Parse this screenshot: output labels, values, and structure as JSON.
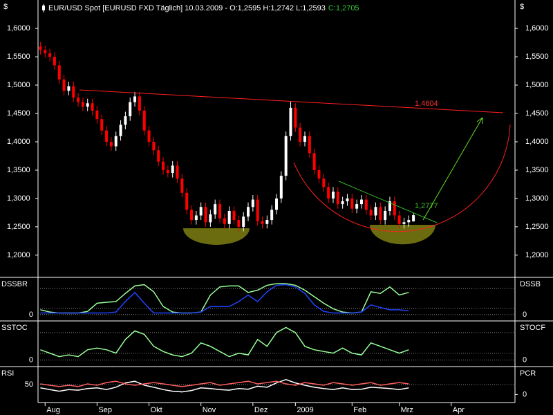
{
  "chart_data": [
    {
      "type": "candlestick",
      "title": "EUR/USD Spot [EURUSD FXD  Täglich] 10.03.2009 - O:1,2595 H:1,2742 L:1,2593",
      "close_label": "C:1,2705",
      "y_unit": "$",
      "up_color": "#ffffff",
      "down_color": "#ff0000",
      "xlim": [
        -0.5,
        100.5
      ],
      "xticks": [
        {
          "value": 1,
          "label": "Aug"
        },
        {
          "value": 12,
          "label": "Sep"
        },
        {
          "value": 23,
          "label": "Okt"
        },
        {
          "value": 34,
          "label": "Nov"
        },
        {
          "value": 45,
          "label": "Dez"
        },
        {
          "value": 54,
          "label": "2009"
        },
        {
          "value": 66,
          "label": "Feb"
        },
        {
          "value": 76,
          "label": "Mrz"
        },
        {
          "value": 87,
          "label": "Apr"
        }
      ],
      "ylim": [
        1.162,
        1.616
      ],
      "yticks": [
        {
          "value": 1.2,
          "label": "1,2000"
        },
        {
          "value": 1.25,
          "label": "1,2500"
        },
        {
          "value": 1.3,
          "label": "1,3000"
        },
        {
          "value": 1.35,
          "label": "1,3500"
        },
        {
          "value": 1.4,
          "label": "1,4000"
        },
        {
          "value": 1.45,
          "label": "1,4500"
        },
        {
          "value": 1.5,
          "label": "1,5000"
        },
        {
          "value": 1.55,
          "label": "1,5500"
        },
        {
          "value": 1.6,
          "label": "1,6000"
        }
      ],
      "annotations": [
        {
          "text": "1,4604",
          "color": "#ff3030"
        },
        {
          "text": "1,2777",
          "color": "#44bb33"
        }
      ],
      "open": [
        1.568,
        1.562,
        1.556,
        1.55,
        1.535,
        1.51,
        1.49,
        1.498,
        1.478,
        1.47,
        1.462,
        1.468,
        1.455,
        1.44,
        1.42,
        1.4,
        1.392,
        1.41,
        1.43,
        1.445,
        1.47,
        1.48,
        1.455,
        1.42,
        1.4,
        1.385,
        1.365,
        1.35,
        1.345,
        1.358,
        1.335,
        1.31,
        1.28,
        1.262,
        1.27,
        1.285,
        1.258,
        1.272,
        1.29,
        1.265,
        1.255,
        1.278,
        1.262,
        1.25,
        1.268,
        1.285,
        1.298,
        1.26,
        1.255,
        1.262,
        1.28,
        1.3,
        1.34,
        1.41,
        1.46,
        1.425,
        1.4,
        1.41,
        1.38,
        1.35,
        1.335,
        1.32,
        1.3,
        1.312,
        1.29,
        1.295,
        1.3,
        1.282,
        1.29,
        1.298,
        1.28,
        1.27,
        1.285,
        1.262,
        1.278,
        1.295,
        1.27,
        1.255,
        1.258,
        1.2595
      ],
      "high": [
        1.576,
        1.57,
        1.564,
        1.558,
        1.543,
        1.518,
        1.506,
        1.506,
        1.486,
        1.478,
        1.476,
        1.476,
        1.463,
        1.448,
        1.428,
        1.408,
        1.418,
        1.438,
        1.453,
        1.478,
        1.488,
        1.488,
        1.463,
        1.428,
        1.408,
        1.393,
        1.373,
        1.358,
        1.366,
        1.366,
        1.343,
        1.318,
        1.288,
        1.278,
        1.293,
        1.293,
        1.28,
        1.298,
        1.298,
        1.273,
        1.286,
        1.286,
        1.27,
        1.276,
        1.293,
        1.306,
        1.306,
        1.268,
        1.27,
        1.288,
        1.308,
        1.348,
        1.418,
        1.472,
        1.468,
        1.433,
        1.418,
        1.418,
        1.388,
        1.358,
        1.343,
        1.328,
        1.32,
        1.32,
        1.303,
        1.308,
        1.308,
        1.298,
        1.306,
        1.306,
        1.288,
        1.293,
        1.293,
        1.286,
        1.303,
        1.303,
        1.278,
        1.266,
        1.27,
        1.2742
      ],
      "low": [
        1.554,
        1.548,
        1.542,
        1.527,
        1.502,
        1.482,
        1.482,
        1.47,
        1.462,
        1.454,
        1.454,
        1.447,
        1.432,
        1.412,
        1.392,
        1.384,
        1.384,
        1.402,
        1.422,
        1.437,
        1.462,
        1.447,
        1.412,
        1.392,
        1.377,
        1.357,
        1.342,
        1.337,
        1.337,
        1.327,
        1.302,
        1.272,
        1.254,
        1.254,
        1.262,
        1.25,
        1.25,
        1.264,
        1.257,
        1.247,
        1.247,
        1.254,
        1.242,
        1.242,
        1.26,
        1.277,
        1.252,
        1.247,
        1.247,
        1.254,
        1.272,
        1.292,
        1.332,
        1.402,
        1.417,
        1.392,
        1.392,
        1.372,
        1.342,
        1.327,
        1.312,
        1.292,
        1.292,
        1.282,
        1.282,
        1.287,
        1.274,
        1.274,
        1.282,
        1.272,
        1.262,
        1.262,
        1.254,
        1.254,
        1.27,
        1.262,
        1.247,
        1.247,
        1.25,
        1.2593
      ],
      "close": [
        1.562,
        1.556,
        1.55,
        1.535,
        1.51,
        1.49,
        1.498,
        1.478,
        1.47,
        1.462,
        1.468,
        1.455,
        1.44,
        1.42,
        1.4,
        1.392,
        1.41,
        1.43,
        1.445,
        1.47,
        1.48,
        1.455,
        1.42,
        1.4,
        1.385,
        1.365,
        1.35,
        1.345,
        1.358,
        1.335,
        1.31,
        1.28,
        1.262,
        1.27,
        1.285,
        1.258,
        1.272,
        1.29,
        1.265,
        1.255,
        1.278,
        1.262,
        1.25,
        1.268,
        1.285,
        1.298,
        1.26,
        1.255,
        1.262,
        1.28,
        1.3,
        1.34,
        1.41,
        1.46,
        1.425,
        1.4,
        1.41,
        1.38,
        1.35,
        1.335,
        1.32,
        1.3,
        1.312,
        1.29,
        1.295,
        1.3,
        1.282,
        1.29,
        1.298,
        1.28,
        1.27,
        1.285,
        1.262,
        1.278,
        1.295,
        1.27,
        1.255,
        1.258,
        1.262,
        1.2705
      ]
    },
    {
      "type": "line",
      "left_label": "DSSBR",
      "right_label": "DSSB",
      "x": [
        0,
        2,
        4,
        6,
        8,
        10,
        12,
        14,
        16,
        18,
        20,
        22,
        24,
        26,
        28,
        30,
        32,
        34,
        36,
        38,
        40,
        42,
        44,
        46,
        48,
        50,
        52,
        54,
        56,
        58,
        60,
        62,
        64,
        66,
        68,
        70,
        72,
        74,
        76,
        78
      ],
      "ylim": [
        -15,
        110
      ],
      "yticks": [
        0
      ],
      "guides": [
        20,
        80
      ],
      "series": [
        {
          "color": "#99ff99",
          "values": [
            15,
            8,
            5,
            5,
            5,
            10,
            35,
            38,
            40,
            65,
            88,
            92,
            70,
            25,
            8,
            5,
            5,
            8,
            60,
            85,
            88,
            88,
            68,
            75,
            90,
            95,
            95,
            90,
            75,
            55,
            35,
            18,
            8,
            5,
            8,
            70,
            65,
            85,
            60,
            68
          ]
        },
        {
          "color": "#2244ff",
          "values": [
            5,
            5,
            5,
            5,
            5,
            5,
            5,
            5,
            8,
            40,
            68,
            35,
            5,
            5,
            5,
            5,
            5,
            8,
            25,
            25,
            25,
            40,
            60,
            40,
            70,
            90,
            92,
            85,
            65,
            30,
            10,
            5,
            5,
            5,
            8,
            30,
            22,
            15,
            15,
            12
          ]
        }
      ]
    },
    {
      "type": "line",
      "left_label": "SSTOC",
      "right_label": "STOCF",
      "x": [
        0,
        2,
        4,
        6,
        8,
        10,
        12,
        14,
        16,
        18,
        20,
        22,
        24,
        26,
        28,
        30,
        32,
        34,
        36,
        38,
        40,
        42,
        44,
        46,
        48,
        50,
        52,
        54,
        56,
        58,
        60,
        62,
        64,
        66,
        68,
        70,
        72,
        74,
        76,
        78
      ],
      "ylim": [
        -15,
        110
      ],
      "yticks": [
        0
      ],
      "guides": [
        20,
        80
      ],
      "series": [
        {
          "color": "#99ff99",
          "values": [
            30,
            20,
            10,
            15,
            10,
            30,
            35,
            30,
            20,
            60,
            85,
            75,
            40,
            25,
            15,
            10,
            20,
            50,
            40,
            25,
            10,
            20,
            15,
            60,
            40,
            80,
            95,
            80,
            40,
            30,
            25,
            20,
            35,
            20,
            15,
            50,
            40,
            30,
            20,
            30
          ]
        }
      ]
    },
    {
      "type": "line",
      "left_label": "RSI",
      "right_label": "PCR",
      "x": [
        0,
        2,
        4,
        6,
        8,
        10,
        12,
        14,
        16,
        18,
        20,
        22,
        24,
        26,
        28,
        30,
        32,
        34,
        36,
        38,
        40,
        42,
        44,
        46,
        48,
        50,
        52,
        54,
        56,
        58,
        60,
        62,
        64,
        66,
        68,
        70,
        72,
        74,
        76,
        78
      ],
      "ylim": [
        0,
        100
      ],
      "yticks": [
        50
      ],
      "y2lim": [
        -0.5,
        2
      ],
      "y2ticks": [
        0
      ],
      "series": [
        {
          "color": "#ffffff",
          "values": [
            40,
            35,
            30,
            35,
            33,
            38,
            40,
            35,
            42,
            55,
            60,
            48,
            42,
            35,
            30,
            28,
            32,
            40,
            38,
            35,
            33,
            38,
            36,
            45,
            42,
            55,
            65,
            55,
            48,
            42,
            38,
            35,
            40,
            35,
            36,
            42,
            40,
            38,
            35,
            40
          ]
        },
        {
          "color": "#ff6060",
          "axis": "y2",
          "values": [
            0.8,
            0.7,
            0.6,
            0.7,
            0.6,
            0.8,
            0.7,
            0.9,
            1.0,
            0.8,
            0.7,
            0.8,
            0.9,
            0.8,
            0.7,
            0.6,
            0.7,
            0.8,
            0.9,
            0.7,
            0.8,
            0.9,
            1.0,
            0.8,
            0.9,
            1.0,
            0.8,
            0.7,
            0.9,
            0.8,
            0.7,
            0.9,
            0.8,
            0.7,
            0.8,
            0.9,
            0.7,
            0.8,
            0.9,
            0.8
          ]
        }
      ]
    }
  ]
}
